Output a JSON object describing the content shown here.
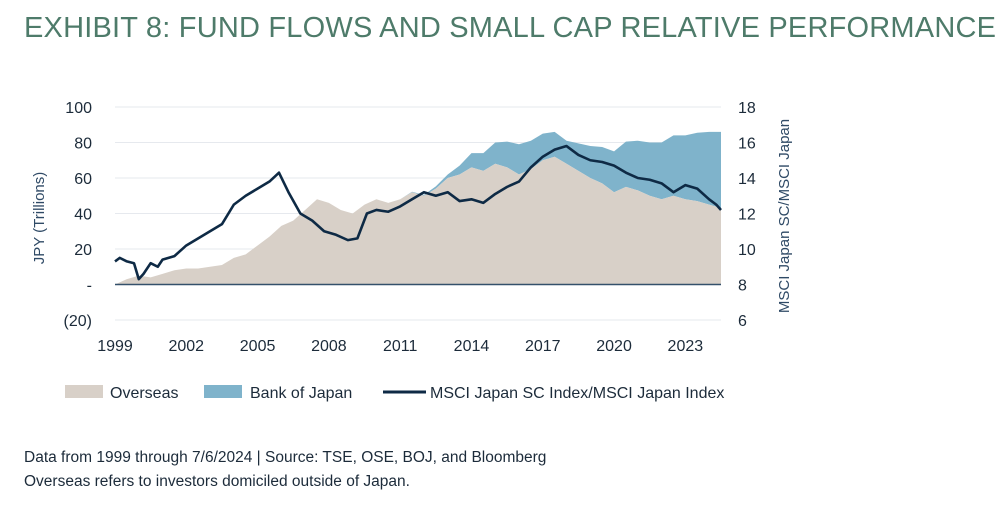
{
  "title": "EXHIBIT 8: FUND FLOWS AND SMALL CAP RELATIVE PERFORMANCE",
  "colors": {
    "title": "#4e7b6a",
    "overseas": "#d8d0c8",
    "boj": "#7fb3cb",
    "ratio": "#0e2a45",
    "axis_text": "#2f4a66",
    "grid": "#e6e9ee"
  },
  "chart_data": {
    "type": "area",
    "x_ticks": [
      "1999",
      "2002",
      "2005",
      "2008",
      "2011",
      "2014",
      "2017",
      "2020",
      "2023"
    ],
    "xlim": [
      1999,
      2024.5
    ],
    "y_left": {
      "label": "JPY (Trillions)",
      "lim": [
        -20,
        100
      ],
      "ticks": [
        100,
        80,
        60,
        40,
        20,
        0,
        -20
      ],
      "tick_labels": [
        "100",
        "80",
        "60",
        "40",
        "20",
        "-",
        "(20)"
      ]
    },
    "y_right": {
      "label": "MSCI Japan SC/MSCI Japan",
      "lim": [
        6,
        18
      ],
      "ticks": [
        18,
        16,
        14,
        12,
        10,
        8,
        6
      ],
      "tick_labels": [
        "18",
        "16",
        "14",
        "12",
        "10",
        "8",
        "6"
      ]
    },
    "grid": true,
    "legend_position": "bottom",
    "series": [
      {
        "name": "Overseas",
        "kind": "area",
        "axis": "left",
        "points": [
          [
            1999.0,
            0
          ],
          [
            1999.5,
            3
          ],
          [
            2000.0,
            5
          ],
          [
            2000.5,
            4
          ],
          [
            2001.0,
            6
          ],
          [
            2001.5,
            8
          ],
          [
            2002.0,
            9
          ],
          [
            2002.5,
            9
          ],
          [
            2003.0,
            10
          ],
          [
            2003.5,
            11
          ],
          [
            2004.0,
            15
          ],
          [
            2004.5,
            17
          ],
          [
            2005.0,
            22
          ],
          [
            2005.5,
            27
          ],
          [
            2006.0,
            33
          ],
          [
            2006.5,
            36
          ],
          [
            2007.0,
            42
          ],
          [
            2007.5,
            48
          ],
          [
            2008.0,
            46
          ],
          [
            2008.5,
            42
          ],
          [
            2009.0,
            40
          ],
          [
            2009.5,
            45
          ],
          [
            2010.0,
            48
          ],
          [
            2010.5,
            46
          ],
          [
            2011.0,
            48
          ],
          [
            2011.5,
            52
          ],
          [
            2012.0,
            50
          ],
          [
            2012.5,
            54
          ],
          [
            2013.0,
            60
          ],
          [
            2013.5,
            62
          ],
          [
            2014.0,
            66
          ],
          [
            2014.5,
            64
          ],
          [
            2015.0,
            68
          ],
          [
            2015.5,
            66
          ],
          [
            2016.0,
            62
          ],
          [
            2016.5,
            65
          ],
          [
            2017.0,
            70
          ],
          [
            2017.5,
            72
          ],
          [
            2018.0,
            68
          ],
          [
            2018.5,
            64
          ],
          [
            2019.0,
            60
          ],
          [
            2019.5,
            57
          ],
          [
            2020.0,
            52
          ],
          [
            2020.5,
            55
          ],
          [
            2021.0,
            53
          ],
          [
            2021.5,
            50
          ],
          [
            2022.0,
            48
          ],
          [
            2022.5,
            50
          ],
          [
            2023.0,
            48
          ],
          [
            2023.5,
            47
          ],
          [
            2024.0,
            45
          ],
          [
            2024.5,
            43
          ]
        ]
      },
      {
        "name": "Bank of Japan",
        "kind": "area-stacked",
        "axis": "left",
        "points": [
          [
            2010.5,
            0
          ],
          [
            2011.0,
            0
          ],
          [
            2012.0,
            0.5
          ],
          [
            2013.0,
            2
          ],
          [
            2014.0,
            8
          ],
          [
            2015.0,
            12
          ],
          [
            2016.0,
            17
          ],
          [
            2017.0,
            15
          ],
          [
            2018.0,
            13
          ],
          [
            2019.0,
            18
          ],
          [
            2020.0,
            23
          ],
          [
            2021.0,
            28
          ],
          [
            2022.0,
            32
          ],
          [
            2023.0,
            36
          ],
          [
            2024.0,
            41
          ],
          [
            2024.5,
            43
          ]
        ]
      },
      {
        "name": "MSCI Japan SC Index/MSCI Japan Index",
        "kind": "line",
        "axis": "right",
        "points": [
          [
            1999.0,
            9.3
          ],
          [
            1999.2,
            9.5
          ],
          [
            1999.5,
            9.3
          ],
          [
            1999.8,
            9.2
          ],
          [
            2000.0,
            8.3
          ],
          [
            2000.2,
            8.6
          ],
          [
            2000.5,
            9.2
          ],
          [
            2000.8,
            9.0
          ],
          [
            2001.0,
            9.4
          ],
          [
            2001.5,
            9.6
          ],
          [
            2002.0,
            10.2
          ],
          [
            2002.5,
            10.6
          ],
          [
            2003.0,
            11.0
          ],
          [
            2003.5,
            11.4
          ],
          [
            2004.0,
            12.5
          ],
          [
            2004.5,
            13.0
          ],
          [
            2005.0,
            13.4
          ],
          [
            2005.5,
            13.8
          ],
          [
            2005.9,
            14.3
          ],
          [
            2006.3,
            13.2
          ],
          [
            2006.8,
            12.0
          ],
          [
            2007.3,
            11.6
          ],
          [
            2007.8,
            11.0
          ],
          [
            2008.3,
            10.8
          ],
          [
            2008.8,
            10.5
          ],
          [
            2009.2,
            10.6
          ],
          [
            2009.6,
            12.0
          ],
          [
            2010.0,
            12.2
          ],
          [
            2010.5,
            12.1
          ],
          [
            2011.0,
            12.4
          ],
          [
            2011.5,
            12.8
          ],
          [
            2012.0,
            13.2
          ],
          [
            2012.5,
            13.0
          ],
          [
            2013.0,
            13.2
          ],
          [
            2013.5,
            12.7
          ],
          [
            2014.0,
            12.8
          ],
          [
            2014.5,
            12.6
          ],
          [
            2015.0,
            13.1
          ],
          [
            2015.5,
            13.5
          ],
          [
            2016.0,
            13.8
          ],
          [
            2016.5,
            14.6
          ],
          [
            2017.0,
            15.2
          ],
          [
            2017.5,
            15.6
          ],
          [
            2018.0,
            15.8
          ],
          [
            2018.5,
            15.3
          ],
          [
            2019.0,
            15.0
          ],
          [
            2019.5,
            14.9
          ],
          [
            2020.0,
            14.7
          ],
          [
            2020.5,
            14.3
          ],
          [
            2021.0,
            14.0
          ],
          [
            2021.5,
            13.9
          ],
          [
            2022.0,
            13.7
          ],
          [
            2022.5,
            13.2
          ],
          [
            2023.0,
            13.6
          ],
          [
            2023.5,
            13.4
          ],
          [
            2024.0,
            12.8
          ],
          [
            2024.3,
            12.5
          ],
          [
            2024.5,
            12.2
          ]
        ]
      }
    ]
  },
  "legend": {
    "overseas": "Overseas",
    "boj": "Bank of Japan",
    "ratio": "MSCI Japan SC Index/MSCI Japan Index"
  },
  "footer": {
    "line1": "Data from 1999 through 7/6/2024 | Source: TSE, OSE, BOJ, and Bloomberg",
    "line2": "Overseas refers to investors domiciled outside of Japan."
  }
}
